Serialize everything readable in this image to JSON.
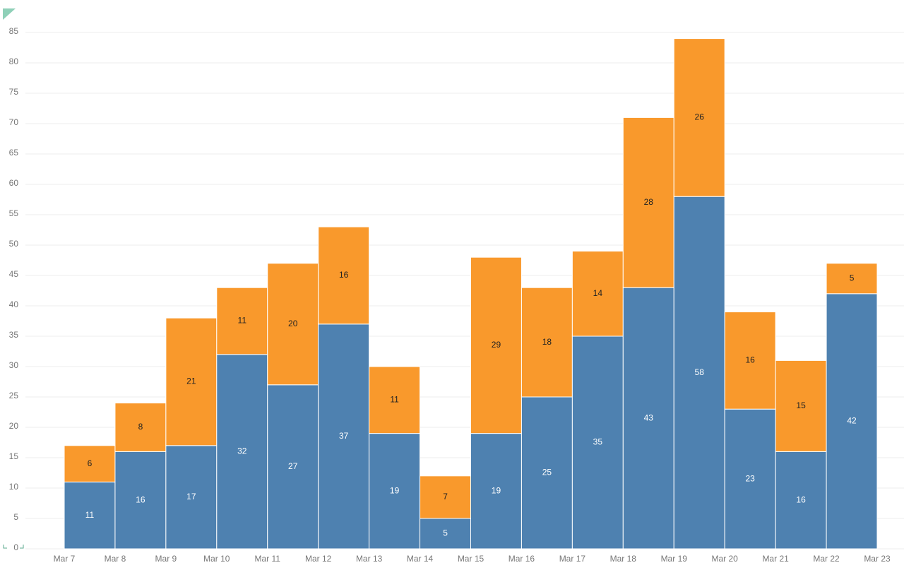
{
  "chart_data": {
    "type": "stacked_histogram",
    "bins": [
      "Mar 7",
      "Mar 8",
      "Mar 9",
      "Mar 10",
      "Mar 11",
      "Mar 12",
      "Mar 13",
      "Mar 14",
      "Mar 15",
      "Mar 16",
      "Mar 17",
      "Mar 18",
      "Mar 19",
      "Mar 20",
      "Mar 21",
      "Mar 22",
      "Mar 23"
    ],
    "series": [
      {
        "color": "#4e81b0",
        "label_color": "#ffffff",
        "values": [
          11,
          16,
          17,
          32,
          27,
          37,
          19,
          5,
          19,
          25,
          35,
          43,
          58,
          23,
          16,
          42
        ]
      },
      {
        "color": "#f9992c",
        "label_color": "#222222",
        "values": [
          6,
          8,
          21,
          11,
          20,
          16,
          11,
          7,
          29,
          18,
          14,
          28,
          26,
          16,
          15,
          5
        ]
      }
    ],
    "ylim": [
      0,
      85
    ],
    "yticks": [
      0,
      5,
      10,
      15,
      20,
      25,
      30,
      35,
      40,
      45,
      50,
      55,
      60,
      65,
      70,
      75,
      80,
      85
    ],
    "grid": true
  }
}
